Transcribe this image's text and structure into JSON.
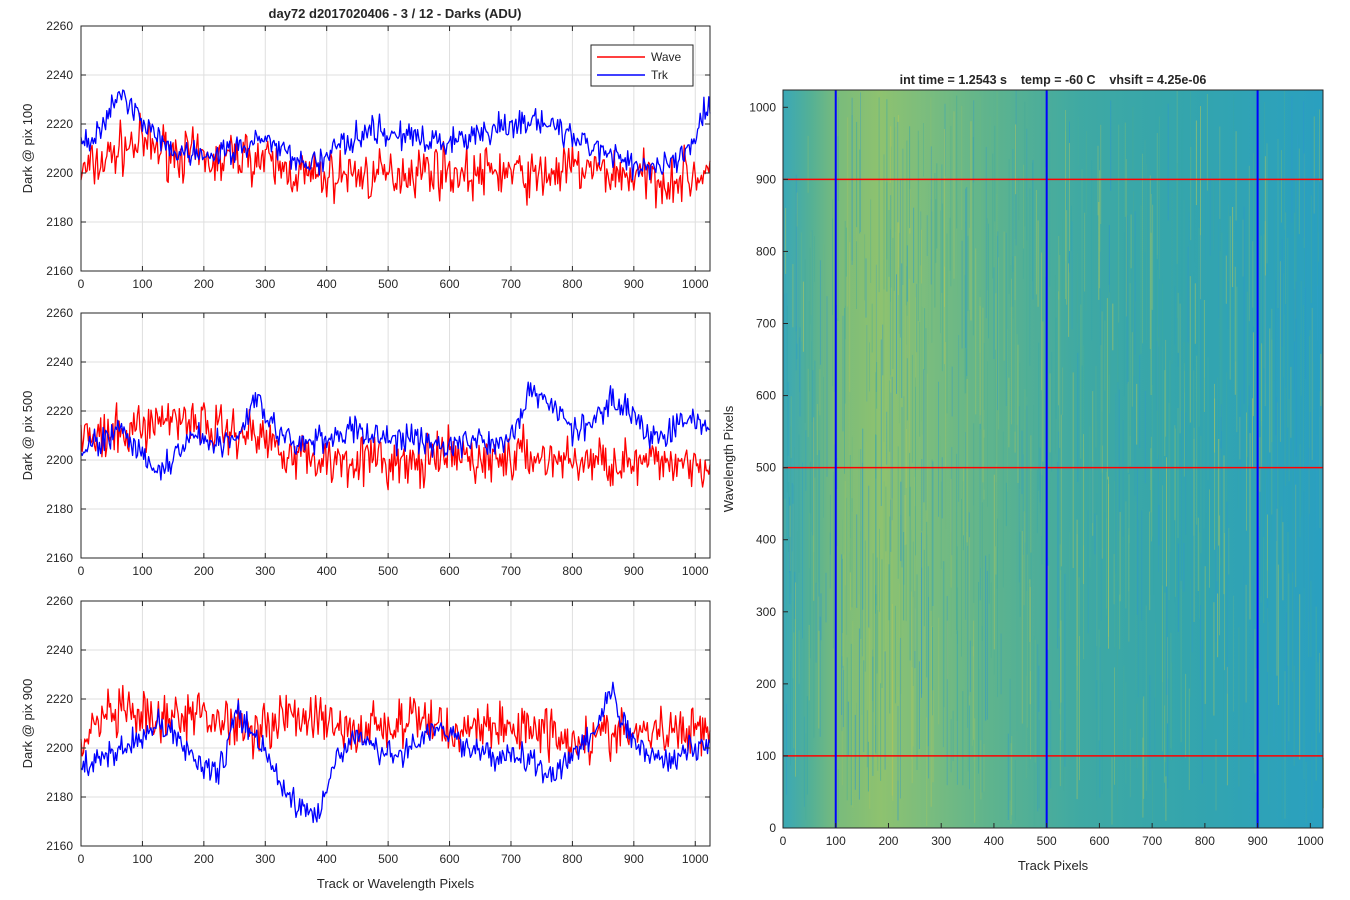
{
  "figure_title": "day72 d2017020406 - 3 / 12 - Darks (ADU)",
  "chart_data": [
    {
      "type": "line",
      "title": "day72 d2017020406 - 3 / 12 - Darks (ADU)",
      "xlabel": "",
      "ylabel": "Dark @ pix 100",
      "xlim": [
        0,
        1024
      ],
      "ylim": [
        2160,
        2260
      ],
      "x_ticks": [
        "0",
        "100",
        "200",
        "300",
        "400",
        "500",
        "600",
        "700",
        "800",
        "900",
        "1000"
      ],
      "y_ticks": [
        "2160",
        "2180",
        "2200",
        "2220",
        "2240",
        "2260"
      ],
      "grid": true,
      "legend": {
        "position": "top-right",
        "entries": [
          "Wave",
          "Trk"
        ]
      },
      "series": [
        {
          "name": "Wave",
          "color": "#ff0000",
          "x": [
            0,
            32,
            64,
            96,
            128,
            160,
            192,
            224,
            256,
            288,
            320,
            352,
            384,
            416,
            448,
            480,
            512,
            544,
            576,
            608,
            640,
            672,
            704,
            736,
            768,
            800,
            832,
            864,
            896,
            928,
            960,
            992,
            1024
          ],
          "y": [
            2200,
            2204,
            2210,
            2212,
            2210,
            2208,
            2206,
            2204,
            2208,
            2206,
            2202,
            2200,
            2198,
            2199,
            2200,
            2198,
            2200,
            2201,
            2202,
            2200,
            2199,
            2201,
            2200,
            2198,
            2200,
            2202,
            2201,
            2200,
            2199,
            2198,
            2197,
            2199,
            2200
          ]
        },
        {
          "name": "Trk",
          "color": "#0000ff",
          "x": [
            0,
            32,
            64,
            96,
            128,
            160,
            192,
            224,
            256,
            288,
            320,
            352,
            384,
            416,
            448,
            480,
            512,
            544,
            576,
            608,
            640,
            672,
            704,
            736,
            768,
            800,
            832,
            864,
            896,
            928,
            960,
            992,
            1024
          ],
          "y": [
            2210,
            2218,
            2232,
            2222,
            2212,
            2208,
            2206,
            2208,
            2210,
            2214,
            2210,
            2205,
            2204,
            2210,
            2216,
            2218,
            2216,
            2214,
            2212,
            2214,
            2216,
            2218,
            2220,
            2222,
            2218,
            2214,
            2210,
            2206,
            2204,
            2203,
            2204,
            2212,
            2230
          ]
        }
      ]
    },
    {
      "type": "line",
      "xlabel": "",
      "ylabel": "Dark @ pix 500",
      "xlim": [
        0,
        1024
      ],
      "ylim": [
        2160,
        2260
      ],
      "x_ticks": [
        "0",
        "100",
        "200",
        "300",
        "400",
        "500",
        "600",
        "700",
        "800",
        "900",
        "1000"
      ],
      "y_ticks": [
        "2160",
        "2180",
        "2200",
        "2220",
        "2240",
        "2260"
      ],
      "grid": true,
      "series": [
        {
          "name": "Wave",
          "color": "#ff0000",
          "x": [
            0,
            32,
            64,
            96,
            128,
            160,
            192,
            224,
            256,
            288,
            320,
            352,
            384,
            416,
            448,
            480,
            512,
            544,
            576,
            608,
            640,
            672,
            704,
            736,
            768,
            800,
            832,
            864,
            896,
            928,
            960,
            992,
            1024
          ],
          "y": [
            2210,
            2208,
            2210,
            2214,
            2216,
            2218,
            2216,
            2212,
            2212,
            2210,
            2206,
            2202,
            2200,
            2200,
            2201,
            2200,
            2198,
            2198,
            2200,
            2202,
            2200,
            2200,
            2201,
            2202,
            2200,
            2200,
            2199,
            2200,
            2198,
            2198,
            2200,
            2199,
            2200
          ]
        },
        {
          "name": "Trk",
          "color": "#0000ff",
          "x": [
            0,
            32,
            64,
            96,
            128,
            160,
            192,
            224,
            256,
            288,
            320,
            352,
            384,
            416,
            448,
            480,
            512,
            544,
            576,
            608,
            640,
            672,
            704,
            736,
            768,
            800,
            832,
            864,
            896,
            928,
            960,
            992,
            1024
          ],
          "y": [
            2204,
            2208,
            2212,
            2202,
            2194,
            2204,
            2210,
            2206,
            2210,
            2226,
            2210,
            2206,
            2208,
            2210,
            2212,
            2210,
            2208,
            2210,
            2206,
            2206,
            2208,
            2206,
            2212,
            2230,
            2222,
            2212,
            2214,
            2226,
            2220,
            2208,
            2212,
            2218,
            2212
          ]
        }
      ]
    },
    {
      "type": "line",
      "xlabel": "Track or Wavelength Pixels",
      "ylabel": "Dark @ pix 900",
      "xlim": [
        0,
        1024
      ],
      "ylim": [
        2160,
        2260
      ],
      "x_ticks": [
        "0",
        "100",
        "200",
        "300",
        "400",
        "500",
        "600",
        "700",
        "800",
        "900",
        "1000"
      ],
      "y_ticks": [
        "2160",
        "2180",
        "2200",
        "2220",
        "2240",
        "2260"
      ],
      "grid": true,
      "series": [
        {
          "name": "Wave",
          "color": "#ff0000",
          "x": [
            0,
            32,
            64,
            96,
            128,
            160,
            192,
            224,
            256,
            288,
            320,
            352,
            384,
            416,
            448,
            480,
            512,
            544,
            576,
            608,
            640,
            672,
            704,
            736,
            768,
            800,
            832,
            864,
            896,
            928,
            960,
            992,
            1024
          ],
          "y": [
            2200,
            2212,
            2214,
            2212,
            2210,
            2212,
            2214,
            2212,
            2210,
            2208,
            2212,
            2214,
            2212,
            2208,
            2206,
            2210,
            2208,
            2212,
            2210,
            2206,
            2210,
            2208,
            2208,
            2210,
            2206,
            2204,
            2204,
            2206,
            2206,
            2206,
            2206,
            2208,
            2210
          ]
        },
        {
          "name": "Trk",
          "color": "#0000ff",
          "x": [
            0,
            32,
            64,
            96,
            128,
            160,
            192,
            224,
            256,
            288,
            320,
            352,
            384,
            416,
            448,
            480,
            512,
            544,
            576,
            608,
            640,
            672,
            704,
            736,
            768,
            800,
            832,
            864,
            896,
            928,
            960,
            992,
            1024
          ],
          "y": [
            2192,
            2196,
            2200,
            2204,
            2210,
            2204,
            2194,
            2190,
            2214,
            2204,
            2188,
            2176,
            2172,
            2196,
            2206,
            2200,
            2196,
            2202,
            2208,
            2204,
            2200,
            2196,
            2198,
            2194,
            2188,
            2196,
            2204,
            2222,
            2204,
            2196,
            2194,
            2200,
            2202
          ]
        }
      ]
    },
    {
      "type": "heatmap",
      "title": "int time = 1.2543 s    temp = -60 C    vhsift = 4.25e-06",
      "xlabel": "Track Pixels",
      "ylabel": "Wavelength Pixels",
      "xlim": [
        0,
        1024
      ],
      "ylim": [
        0,
        1024
      ],
      "x_ticks": [
        "0",
        "100",
        "200",
        "300",
        "400",
        "500",
        "600",
        "700",
        "800",
        "900",
        "1000"
      ],
      "y_ticks": [
        "0",
        "100",
        "200",
        "300",
        "400",
        "500",
        "600",
        "700",
        "800",
        "900",
        "1000"
      ],
      "colormap": "parula",
      "vertical_markers": {
        "color": "#0000ff",
        "x": [
          100,
          500,
          900
        ]
      },
      "horizontal_markers": {
        "color": "#ff0000",
        "y": [
          100,
          500,
          900
        ]
      }
    }
  ]
}
